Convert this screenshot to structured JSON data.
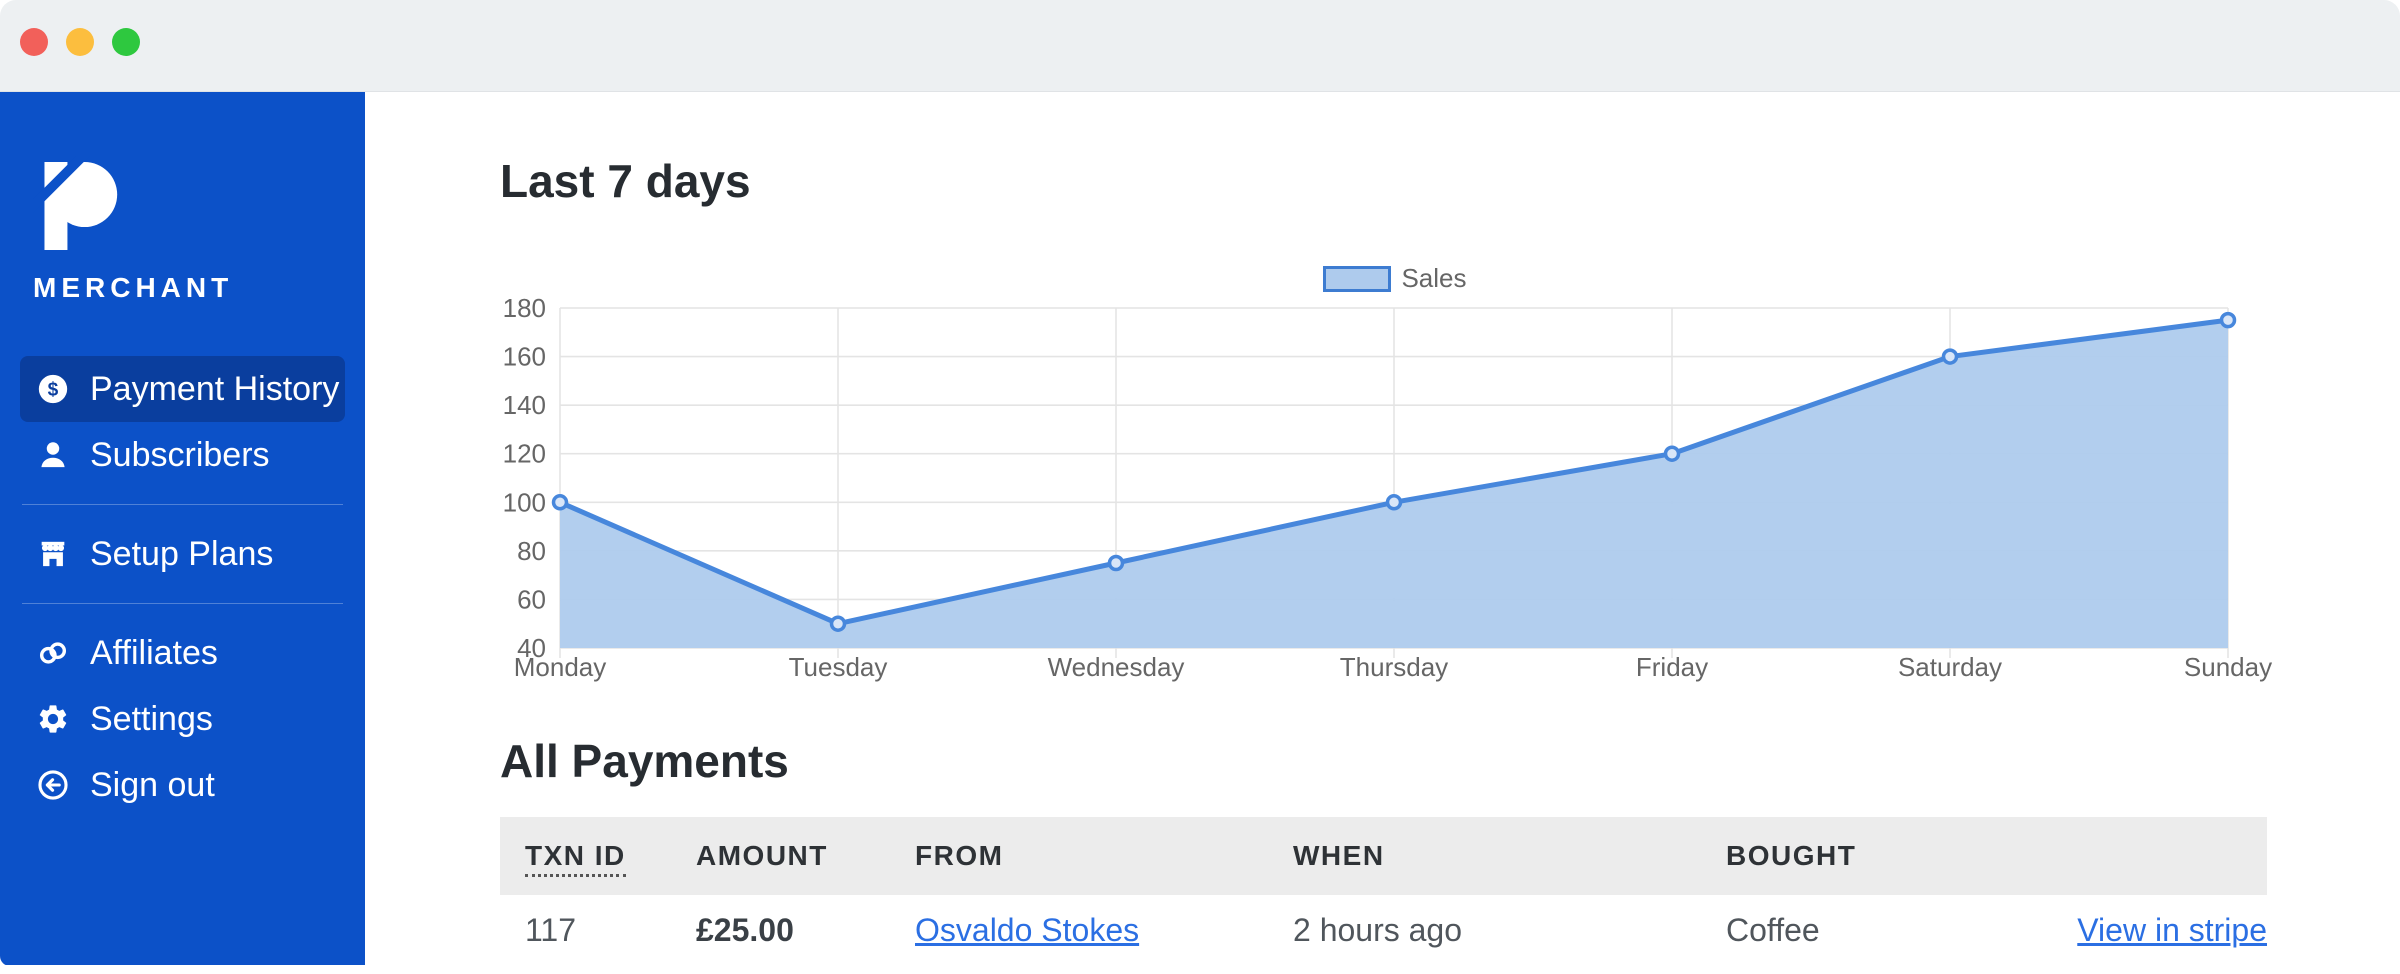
{
  "window": {
    "buttons": [
      {
        "name": "close"
      },
      {
        "name": "minimize"
      },
      {
        "name": "zoom"
      }
    ]
  },
  "sidebar": {
    "brand": {
      "logo": "P",
      "name": "MERCHANT"
    },
    "nav": [
      {
        "label": "Payment History",
        "icon": "dollar-circle",
        "active": true,
        "group": 0
      },
      {
        "label": "Subscribers",
        "icon": "person",
        "active": false,
        "group": 0
      },
      {
        "label": "Setup Plans",
        "icon": "store",
        "active": false,
        "group": 1
      },
      {
        "label": "Affiliates",
        "icon": "link",
        "active": false,
        "group": 2
      },
      {
        "label": "Settings",
        "icon": "gear",
        "active": false,
        "group": 2
      },
      {
        "label": "Sign out",
        "icon": "sign-out",
        "active": false,
        "group": 2
      }
    ]
  },
  "main": {
    "chart_section_title": "Last 7 days",
    "payments_section_title": "All Payments",
    "table": {
      "columns": [
        {
          "label": "TXN ID",
          "underlined": true
        },
        {
          "label": "AMOUNT",
          "underlined": false
        },
        {
          "label": "FROM",
          "underlined": false
        },
        {
          "label": "WHEN",
          "underlined": false
        },
        {
          "label": "BOUGHT",
          "underlined": false
        },
        {
          "label": "",
          "underlined": false
        }
      ],
      "rows": [
        {
          "txn_id": "117",
          "amount": "£25.00",
          "from": "Osvaldo Stokes",
          "when": "2 hours ago",
          "bought": "Coffee",
          "action": "View in stripe"
        }
      ]
    }
  },
  "chart_data": {
    "type": "area",
    "title": "",
    "xlabel": "",
    "ylabel": "",
    "categories": [
      "Monday",
      "Tuesday",
      "Wednesday",
      "Thursday",
      "Friday",
      "Saturday",
      "Sunday"
    ],
    "series": [
      {
        "name": "Sales",
        "values": [
          100,
          50,
          75,
          100,
          120,
          160,
          175
        ]
      }
    ],
    "ylim": [
      40,
      180
    ],
    "ytick_step": 20,
    "grid": true,
    "legend_position": "top-center"
  },
  "colors": {
    "titlebar": "#EDF0F2",
    "sidebar": "#0C51C8",
    "sidebar_active": "#0A3E9E",
    "link": "#2B6FE3",
    "chart_line": "#4787DC",
    "chart_fill": "#AECBED",
    "legend_border": "#3D7CD1",
    "grid_line": "#E4E4E4",
    "axis_text": "#666666",
    "traffic_red": "#F2605A",
    "traffic_yellow": "#FCBE3E",
    "traffic_green": "#2EC83F"
  }
}
